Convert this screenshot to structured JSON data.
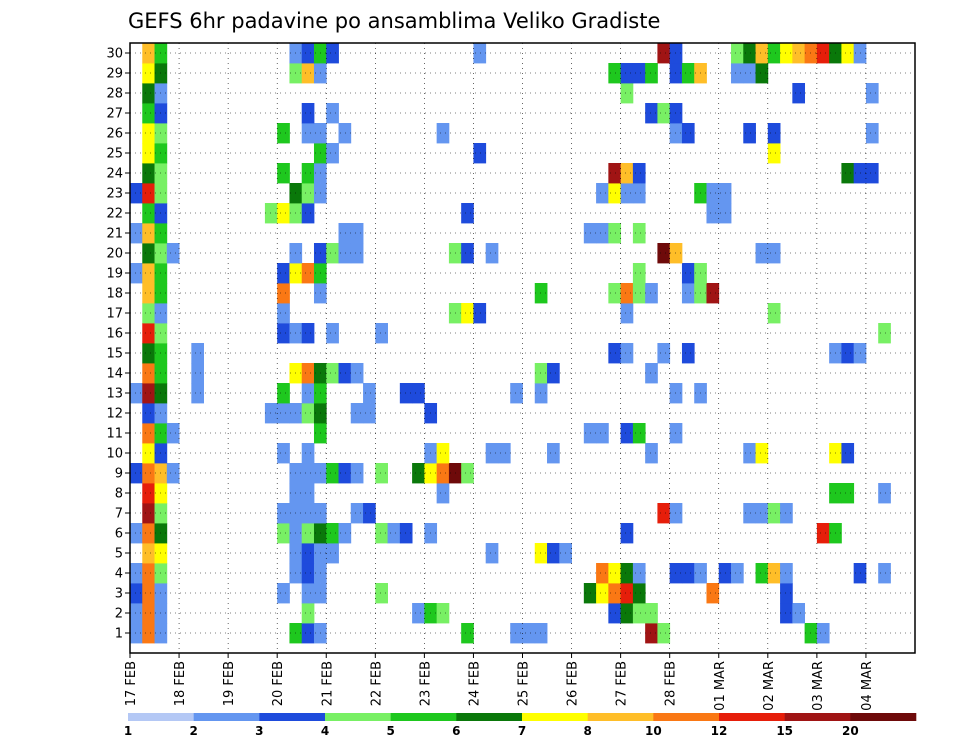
{
  "chart_data": {
    "type": "heatmap",
    "title": "GEFS 6hr padavine po ansamblima Veliko Gradiste",
    "members": 30,
    "steps_per_day": 4,
    "total_steps": 64,
    "y_ticks": [
      "1",
      "2",
      "3",
      "4",
      "5",
      "6",
      "7",
      "8",
      "9",
      "10",
      "11",
      "12",
      "13",
      "14",
      "15",
      "16",
      "17",
      "18",
      "19",
      "20",
      "21",
      "22",
      "23",
      "24",
      "25",
      "26",
      "27",
      "28",
      "29",
      "30"
    ],
    "x_ticks": [
      {
        "label": "17 FEB",
        "step": 0
      },
      {
        "label": "18 FEB",
        "step": 4
      },
      {
        "label": "19 FEB",
        "step": 8
      },
      {
        "label": "20 FEB",
        "step": 12
      },
      {
        "label": "21 FEB",
        "step": 16
      },
      {
        "label": "22 FEB",
        "step": 20
      },
      {
        "label": "23 FEB",
        "step": 24
      },
      {
        "label": "24 FEB",
        "step": 28
      },
      {
        "label": "25 FEB",
        "step": 32
      },
      {
        "label": "26 FEB",
        "step": 36
      },
      {
        "label": "27 FEB",
        "step": 40
      },
      {
        "label": "28 FEB",
        "step": 44
      },
      {
        "label": "01 MAR",
        "step": 48
      },
      {
        "label": "02 MAR",
        "step": 52
      },
      {
        "label": "03 MAR",
        "step": 56
      },
      {
        "label": "04 MAR",
        "step": 60
      }
    ],
    "levels": [
      1,
      2,
      3,
      4,
      5,
      6,
      7,
      8,
      10,
      12,
      15,
      20
    ],
    "level_labels": [
      "1",
      "2",
      "3",
      "4",
      "5",
      "6",
      "7",
      "8",
      "10",
      "12",
      "15",
      "20"
    ],
    "colors": [
      "#b4c8f5",
      "#6496f0",
      "#1e4bdc",
      "#78f064",
      "#1ec81e",
      "#0a780a",
      "#ffff00",
      "#ffbe28",
      "#fa7814",
      "#e61e0a",
      "#a01414",
      "#6e0a0a"
    ],
    "cells": {
      "30": [
        [
          1,
          7
        ],
        [
          2,
          4
        ],
        [
          13,
          1
        ],
        [
          14,
          2
        ],
        [
          15,
          4
        ],
        [
          16,
          2
        ],
        [
          28,
          1
        ],
        [
          43,
          10
        ],
        [
          44,
          2
        ],
        [
          49,
          3
        ],
        [
          50,
          5
        ],
        [
          51,
          7
        ],
        [
          52,
          4
        ],
        [
          53,
          6
        ],
        [
          54,
          7
        ],
        [
          55,
          8
        ],
        [
          56,
          9
        ],
        [
          57,
          5
        ],
        [
          58,
          6
        ],
        [
          59,
          1
        ]
      ],
      "29": [
        [
          1,
          6
        ],
        [
          2,
          5
        ],
        [
          13,
          3
        ],
        [
          14,
          7
        ],
        [
          15,
          1
        ],
        [
          39,
          4
        ],
        [
          40,
          2
        ],
        [
          41,
          2
        ],
        [
          42,
          4
        ],
        [
          44,
          2
        ],
        [
          45,
          4
        ],
        [
          46,
          7
        ],
        [
          49,
          1
        ],
        [
          50,
          1
        ],
        [
          51,
          5
        ]
      ],
      "28": [
        [
          1,
          5
        ],
        [
          2,
          1
        ],
        [
          40,
          3
        ],
        [
          54,
          2
        ],
        [
          60,
          1
        ]
      ],
      "27": [
        [
          1,
          4
        ],
        [
          2,
          2
        ],
        [
          14,
          2
        ],
        [
          16,
          1
        ],
        [
          42,
          2
        ],
        [
          43,
          3
        ],
        [
          44,
          2
        ]
      ],
      "26": [
        [
          1,
          6
        ],
        [
          2,
          3
        ],
        [
          12,
          4
        ],
        [
          14,
          1
        ],
        [
          15,
          1
        ],
        [
          17,
          1
        ],
        [
          25,
          1
        ],
        [
          44,
          1
        ],
        [
          45,
          2
        ],
        [
          50,
          2
        ],
        [
          52,
          2
        ],
        [
          60,
          1
        ]
      ],
      "25": [
        [
          1,
          6
        ],
        [
          2,
          4
        ],
        [
          15,
          4
        ],
        [
          16,
          1
        ],
        [
          28,
          2
        ],
        [
          52,
          6
        ]
      ],
      "24": [
        [
          1,
          5
        ],
        [
          2,
          3
        ],
        [
          12,
          4
        ],
        [
          14,
          4
        ],
        [
          15,
          1
        ],
        [
          39,
          10
        ],
        [
          40,
          7
        ],
        [
          41,
          2
        ],
        [
          58,
          5
        ],
        [
          59,
          2
        ],
        [
          60,
          2
        ]
      ],
      "23": [
        [
          0,
          2
        ],
        [
          1,
          9
        ],
        [
          2,
          3
        ],
        [
          13,
          5
        ],
        [
          14,
          3
        ],
        [
          15,
          1
        ],
        [
          38,
          1
        ],
        [
          39,
          6
        ],
        [
          40,
          1
        ],
        [
          41,
          1
        ],
        [
          46,
          4
        ],
        [
          47,
          1
        ],
        [
          48,
          1
        ]
      ],
      "22": [
        [
          1,
          4
        ],
        [
          2,
          2
        ],
        [
          11,
          3
        ],
        [
          12,
          6
        ],
        [
          13,
          3
        ],
        [
          14,
          2
        ],
        [
          27,
          2
        ],
        [
          47,
          1
        ],
        [
          48,
          1
        ]
      ],
      "21": [
        [
          0,
          1
        ],
        [
          1,
          7
        ],
        [
          2,
          4
        ],
        [
          17,
          1
        ],
        [
          18,
          1
        ],
        [
          37,
          1
        ],
        [
          38,
          1
        ],
        [
          39,
          3
        ],
        [
          41,
          3
        ]
      ],
      "20": [
        [
          1,
          5
        ],
        [
          2,
          3
        ],
        [
          3,
          1
        ],
        [
          13,
          1
        ],
        [
          15,
          2
        ],
        [
          16,
          3
        ],
        [
          17,
          1
        ],
        [
          18,
          1
        ],
        [
          26,
          3
        ],
        [
          27,
          2
        ],
        [
          29,
          1
        ],
        [
          43,
          11
        ],
        [
          44,
          7
        ],
        [
          51,
          1
        ],
        [
          52,
          1
        ]
      ],
      "19": [
        [
          0,
          1
        ],
        [
          1,
          7
        ],
        [
          2,
          4
        ],
        [
          12,
          2
        ],
        [
          13,
          6
        ],
        [
          14,
          8
        ],
        [
          15,
          4
        ],
        [
          41,
          3
        ],
        [
          45,
          2
        ],
        [
          46,
          3
        ]
      ],
      "18": [
        [
          1,
          7
        ],
        [
          2,
          4
        ],
        [
          12,
          8
        ],
        [
          15,
          1
        ],
        [
          33,
          4
        ],
        [
          39,
          3
        ],
        [
          40,
          8
        ],
        [
          41,
          3
        ],
        [
          42,
          1
        ],
        [
          45,
          1
        ],
        [
          46,
          3
        ],
        [
          47,
          10
        ]
      ],
      "17": [
        [
          1,
          3
        ],
        [
          2,
          1
        ],
        [
          12,
          1
        ],
        [
          26,
          3
        ],
        [
          27,
          6
        ],
        [
          28,
          2
        ],
        [
          40,
          1
        ],
        [
          52,
          3
        ]
      ],
      "16": [
        [
          1,
          9
        ],
        [
          2,
          3
        ],
        [
          12,
          2
        ],
        [
          13,
          1
        ],
        [
          14,
          2
        ],
        [
          16,
          1
        ],
        [
          20,
          1
        ],
        [
          61,
          3
        ]
      ],
      "15": [
        [
          1,
          5
        ],
        [
          2,
          4
        ],
        [
          5,
          1
        ],
        [
          39,
          2
        ],
        [
          40,
          1
        ],
        [
          43,
          1
        ],
        [
          45,
          2
        ],
        [
          57,
          1
        ],
        [
          58,
          2
        ],
        [
          59,
          1
        ]
      ],
      "14": [
        [
          1,
          8
        ],
        [
          2,
          4
        ],
        [
          5,
          1
        ],
        [
          13,
          6
        ],
        [
          14,
          8
        ],
        [
          15,
          5
        ],
        [
          16,
          3
        ],
        [
          17,
          2
        ],
        [
          18,
          1
        ],
        [
          33,
          3
        ],
        [
          34,
          2
        ],
        [
          42,
          1
        ]
      ],
      "13": [
        [
          0,
          1
        ],
        [
          1,
          10
        ],
        [
          2,
          5
        ],
        [
          5,
          1
        ],
        [
          12,
          4
        ],
        [
          14,
          1
        ],
        [
          15,
          4
        ],
        [
          19,
          1
        ],
        [
          22,
          2
        ],
        [
          23,
          2
        ],
        [
          31,
          1
        ],
        [
          33,
          1
        ],
        [
          44,
          1
        ],
        [
          46,
          1
        ]
      ],
      "12": [
        [
          1,
          2
        ],
        [
          2,
          1
        ],
        [
          11,
          1
        ],
        [
          12,
          1
        ],
        [
          13,
          1
        ],
        [
          14,
          3
        ],
        [
          15,
          5
        ],
        [
          18,
          1
        ],
        [
          19,
          1
        ],
        [
          24,
          2
        ]
      ],
      "11": [
        [
          1,
          8
        ],
        [
          2,
          4
        ],
        [
          3,
          1
        ],
        [
          15,
          4
        ],
        [
          37,
          1
        ],
        [
          38,
          1
        ],
        [
          40,
          2
        ],
        [
          41,
          4
        ],
        [
          44,
          1
        ]
      ],
      "10": [
        [
          1,
          6
        ],
        [
          2,
          2
        ],
        [
          12,
          1
        ],
        [
          14,
          1
        ],
        [
          24,
          1
        ],
        [
          25,
          6
        ],
        [
          29,
          1
        ],
        [
          30,
          1
        ],
        [
          34,
          1
        ],
        [
          42,
          1
        ],
        [
          50,
          1
        ],
        [
          51,
          6
        ],
        [
          57,
          6
        ],
        [
          58,
          2
        ]
      ],
      "9": [
        [
          0,
          2
        ],
        [
          1,
          8
        ],
        [
          2,
          7
        ],
        [
          3,
          1
        ],
        [
          13,
          1
        ],
        [
          14,
          1
        ],
        [
          15,
          1
        ],
        [
          16,
          4
        ],
        [
          17,
          2
        ],
        [
          18,
          1
        ],
        [
          20,
          3
        ],
        [
          23,
          5
        ],
        [
          24,
          6
        ],
        [
          25,
          8
        ],
        [
          26,
          11
        ],
        [
          27,
          3
        ]
      ],
      "8": [
        [
          1,
          9
        ],
        [
          2,
          6
        ],
        [
          13,
          1
        ],
        [
          14,
          1
        ],
        [
          25,
          1
        ],
        [
          57,
          4
        ],
        [
          58,
          4
        ],
        [
          61,
          1
        ]
      ],
      "7": [
        [
          1,
          10
        ],
        [
          2,
          3
        ],
        [
          12,
          1
        ],
        [
          13,
          1
        ],
        [
          14,
          1
        ],
        [
          15,
          1
        ],
        [
          18,
          1
        ],
        [
          19,
          2
        ],
        [
          43,
          9
        ],
        [
          44,
          1
        ],
        [
          50,
          1
        ],
        [
          51,
          1
        ],
        [
          52,
          3
        ],
        [
          53,
          1
        ]
      ],
      "6": [
        [
          0,
          1
        ],
        [
          1,
          8
        ],
        [
          2,
          5
        ],
        [
          12,
          3
        ],
        [
          13,
          1
        ],
        [
          14,
          3
        ],
        [
          15,
          5
        ],
        [
          16,
          4
        ],
        [
          17,
          1
        ],
        [
          20,
          3
        ],
        [
          21,
          1
        ],
        [
          22,
          2
        ],
        [
          24,
          1
        ],
        [
          40,
          2
        ],
        [
          56,
          9
        ],
        [
          57,
          4
        ]
      ],
      "5": [
        [
          1,
          7
        ],
        [
          2,
          6
        ],
        [
          13,
          1
        ],
        [
          14,
          2
        ],
        [
          15,
          1
        ],
        [
          16,
          1
        ],
        [
          29,
          1
        ],
        [
          33,
          6
        ],
        [
          34,
          2
        ],
        [
          35,
          1
        ]
      ],
      "4": [
        [
          0,
          1
        ],
        [
          1,
          8
        ],
        [
          2,
          3
        ],
        [
          13,
          1
        ],
        [
          14,
          2
        ],
        [
          15,
          1
        ],
        [
          38,
          8
        ],
        [
          39,
          6
        ],
        [
          40,
          5
        ],
        [
          41,
          1
        ],
        [
          44,
          2
        ],
        [
          45,
          2
        ],
        [
          46,
          1
        ],
        [
          48,
          2
        ],
        [
          49,
          1
        ],
        [
          51,
          4
        ],
        [
          52,
          7
        ],
        [
          53,
          1
        ],
        [
          59,
          2
        ],
        [
          61,
          1
        ]
      ],
      "3": [
        [
          0,
          2
        ],
        [
          1,
          8
        ],
        [
          2,
          1
        ],
        [
          12,
          1
        ],
        [
          14,
          1
        ],
        [
          15,
          1
        ],
        [
          20,
          3
        ],
        [
          37,
          5
        ],
        [
          38,
          6
        ],
        [
          39,
          8
        ],
        [
          40,
          9
        ],
        [
          41,
          5
        ],
        [
          47,
          8
        ],
        [
          53,
          2
        ]
      ],
      "2": [
        [
          0,
          1
        ],
        [
          1,
          8
        ],
        [
          2,
          1
        ],
        [
          14,
          3
        ],
        [
          23,
          1
        ],
        [
          24,
          4
        ],
        [
          25,
          3
        ],
        [
          39,
          2
        ],
        [
          40,
          5
        ],
        [
          41,
          3
        ],
        [
          42,
          3
        ],
        [
          53,
          2
        ],
        [
          54,
          1
        ]
      ],
      "1": [
        [
          0,
          1
        ],
        [
          1,
          8
        ],
        [
          2,
          1
        ],
        [
          13,
          4
        ],
        [
          14,
          2
        ],
        [
          15,
          1
        ],
        [
          27,
          4
        ],
        [
          31,
          1
        ],
        [
          32,
          1
        ],
        [
          33,
          1
        ],
        [
          42,
          10
        ],
        [
          43,
          3
        ],
        [
          55,
          4
        ],
        [
          56,
          1
        ]
      ]
    }
  }
}
